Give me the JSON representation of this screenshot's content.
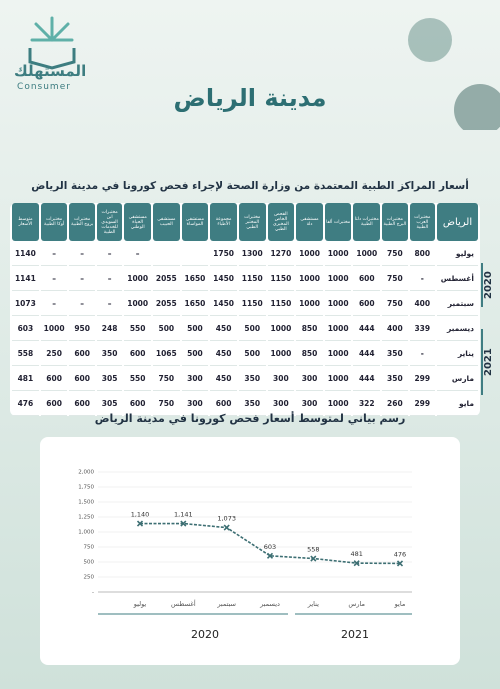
{
  "header": {
    "logo_ar": "المستهلك",
    "logo_en": "Consumer"
  },
  "title": "مدينة الرياض",
  "table": {
    "title": "أسعار المراكز الطبية المعتمدة من وزارة الصحة لإجراء فحص كورونا في مدينة الرياض",
    "columns": [
      "الرياض",
      "مختبرات العرب الطبية",
      "مختبرات البرج الطبية",
      "مختبرات دلتا الطبية",
      "مختبرات ألفا",
      "مستشفى دلة",
      "الفحص الخاص المخبري الطبي",
      "مختبرات المختبر الطبي",
      "مجموعة الأطباء",
      "مستشفى المواساة",
      "مستشفى الحبيب",
      "مستشفى الحياة الوطني",
      "مختبرات ابن السويدي للخدمات الطبية",
      "مختبرات بروج الطبية",
      "مختبرات أوكا الطبية",
      "متوسط الأسعار"
    ],
    "rows": [
      [
        "يوليو",
        800,
        750,
        1000,
        1000,
        1000,
        1270,
        1300,
        1750,
        null,
        null,
        "–",
        "–",
        "–",
        "–",
        1140
      ],
      [
        "أغسطس",
        "-",
        750,
        600,
        1000,
        1000,
        1150,
        1150,
        1450,
        1650,
        2055,
        1000,
        "–",
        "–",
        "–",
        1141
      ],
      [
        "سبتمبر",
        400,
        750,
        600,
        1000,
        1000,
        1150,
        1150,
        1450,
        1650,
        2055,
        1000,
        "–",
        "–",
        "–",
        1073
      ],
      [
        "ديسمبر",
        339,
        400,
        444,
        1000,
        850,
        1000,
        500,
        450,
        500,
        500,
        550,
        248,
        950,
        1000,
        603
      ],
      [
        "يناير",
        "-",
        350,
        444,
        1000,
        850,
        1000,
        500,
        450,
        500,
        1065,
        600,
        350,
        600,
        250,
        558
      ],
      [
        "مارس",
        299,
        350,
        444,
        1000,
        300,
        300,
        350,
        450,
        300,
        750,
        550,
        305,
        600,
        600,
        481
      ],
      [
        "مايو",
        299,
        260,
        322,
        1000,
        300,
        300,
        350,
        600,
        300,
        750,
        600,
        305,
        600,
        600,
        476
      ]
    ],
    "years": [
      "2020",
      "2021"
    ]
  },
  "chart_data": {
    "type": "line",
    "title": "رسم بياني لمتوسط أسعار فحص كورونا في مدينة الرياض",
    "categories": [
      "يوليو",
      "أغسطس",
      "سبتمبر",
      "ديسمبر",
      "يناير",
      "مارس",
      "مايو"
    ],
    "values": [
      1140,
      1141,
      1073,
      603,
      558,
      481,
      476
    ],
    "value_labels": [
      "1,140",
      "1,141",
      "1,073",
      "603",
      "558",
      "481",
      "476"
    ],
    "color": "#3d6f73",
    "ylim": [
      0,
      2000
    ],
    "yticks": [
      {
        "value": 0,
        "label": "-"
      },
      250,
      500,
      750,
      {
        "value": 1000,
        "label": "1,000"
      },
      {
        "value": 1250,
        "label": "1,250"
      },
      {
        "value": 1500,
        "label": "1,500"
      },
      {
        "value": 1750,
        "label": "1,750"
      },
      {
        "value": 2000,
        "label": "2,000"
      }
    ],
    "grid": true,
    "years": [
      "2020",
      "2021"
    ]
  }
}
